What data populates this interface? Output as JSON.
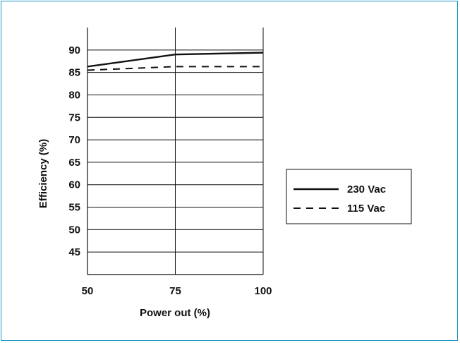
{
  "chart_data": {
    "type": "line",
    "title": "",
    "xlabel": "Power out (%)",
    "ylabel": "Efficiency (%)",
    "x": [
      50,
      75,
      100
    ],
    "xticks": [
      50,
      75,
      100
    ],
    "yticks": [
      45,
      50,
      55,
      60,
      65,
      70,
      75,
      80,
      85,
      90
    ],
    "xlim": [
      50,
      100
    ],
    "ylim": [
      40,
      95
    ],
    "grid": "horizontal lines at each y tick, vertical line at x=75",
    "legend_position": "right",
    "series": [
      {
        "name": "230 Vac",
        "style": "solid",
        "color": "#111111",
        "values": [
          86.3,
          89.0,
          89.4
        ]
      },
      {
        "name": "115 Vac",
        "style": "dashed",
        "color": "#111111",
        "values": [
          85.5,
          86.3,
          86.3
        ]
      }
    ]
  },
  "colors": {
    "frame_border": "#1a96c8",
    "ink": "#111111"
  }
}
